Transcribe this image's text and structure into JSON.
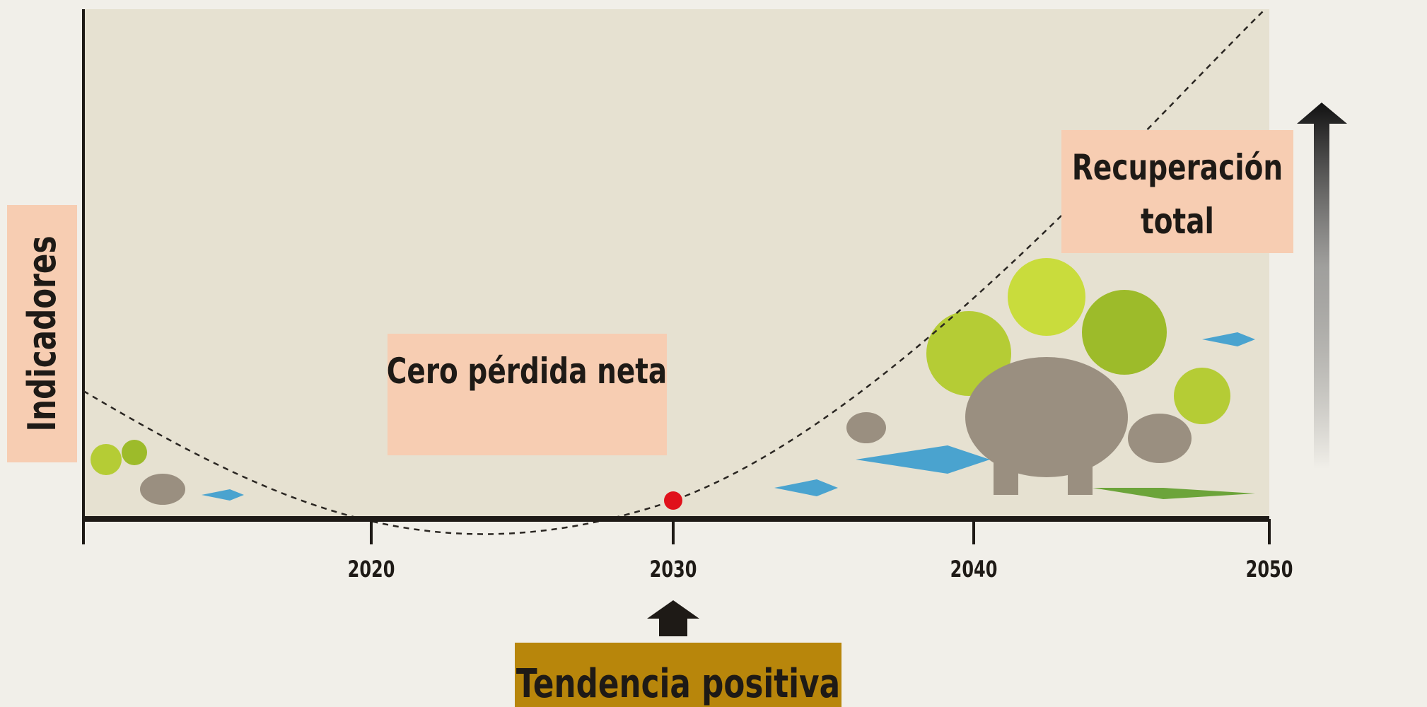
{
  "y_axis_label": "Indicadores",
  "x_ticks": [
    2020,
    2030,
    2040,
    2050
  ],
  "annotations": {
    "zero_net_loss": "Cero pérdida neta",
    "full_recovery": [
      "Recuperación",
      "total"
    ],
    "positive_trend": "Tendencia positiva"
  }
}
